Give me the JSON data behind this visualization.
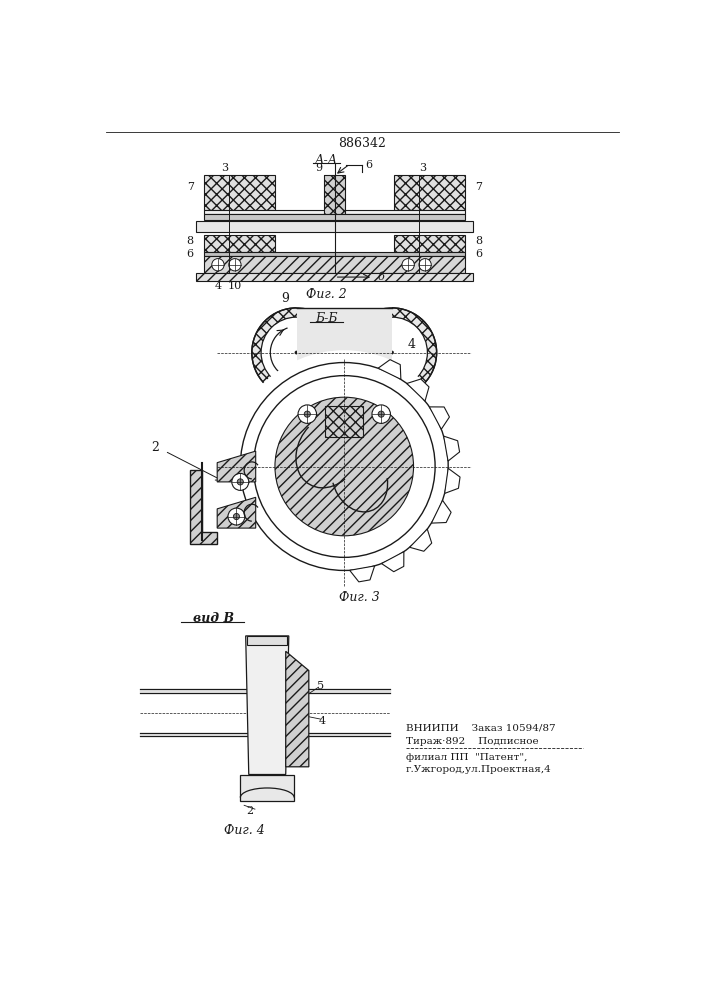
{
  "patent_number": "886342",
  "fig2_label": "А-А",
  "fig3_label": "Б-Б",
  "fig4_label": "вид В",
  "fig2_caption": "Фиг. 2",
  "fig3_caption": "Фиг. 3",
  "fig4_caption": "Фиг. 4",
  "footer_line1": "ВНИИПИ    Заказ 10594/87",
  "footer_line2": "Тираж·892    Подписное",
  "footer_line3": "филиал ПП  \"Патент\",",
  "footer_line4": "г.Ужгород,ул.Проектная,4",
  "bg_color": "#ffffff",
  "line_color": "#1a1a1a"
}
